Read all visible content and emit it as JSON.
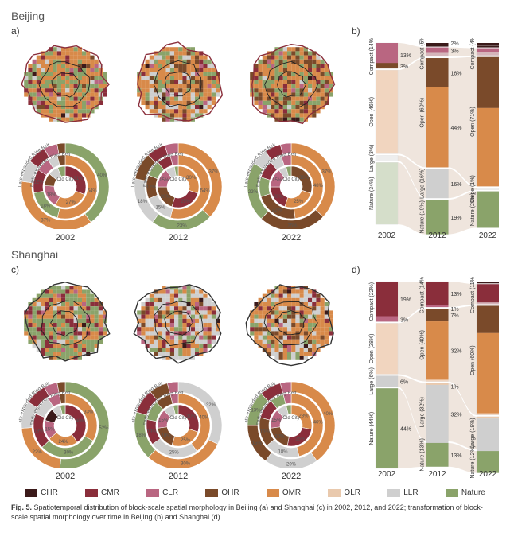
{
  "colors": {
    "CHR": "#3b1a1a",
    "CMR": "#8a2e3b",
    "CLR": "#b96681",
    "OHR": "#7a4a2a",
    "OMR": "#d88a4a",
    "OLR": "#e9c9ad",
    "LLR": "#cfcfcf",
    "Nature": "#8aa36a",
    "flow_light": "#e9dcd2",
    "outline": "#222222",
    "ring_border": "#b8b8b8",
    "figure_bg": "#ffffff"
  },
  "legend": [
    {
      "key": "CHR",
      "label": "CHR"
    },
    {
      "key": "CMR",
      "label": "CMR"
    },
    {
      "key": "CLR",
      "label": "CLR"
    },
    {
      "key": "OHR",
      "label": "OHR"
    },
    {
      "key": "OMR",
      "label": "OMR"
    },
    {
      "key": "OLR",
      "label": "OLR"
    },
    {
      "key": "LLR",
      "label": "LLR"
    },
    {
      "key": "Nature",
      "label": "Nature"
    }
  ],
  "years": [
    "2002",
    "2012",
    "2022"
  ],
  "ring_labels": {
    "outer": "Late-expanded Ring Belt",
    "mid": "Early-expanded Ring Belt",
    "inner": "Old City"
  },
  "cities": {
    "beijing": {
      "title": "Beijing",
      "panel_a": "a)",
      "panel_b": "b)",
      "map_mix_by_year": {
        "2002": {
          "Nature": 0.34,
          "OMR": 0.46,
          "CMR": 0.08,
          "CLR": 0.05,
          "LLR": 0.04,
          "OHR": 0.02,
          "CHR": 0.01
        },
        "2012": {
          "Nature": 0.19,
          "OMR": 0.44,
          "LLR": 0.16,
          "OHR": 0.1,
          "CMR": 0.05,
          "CLR": 0.04,
          "CHR": 0.02
        },
        "2022": {
          "Nature": 0.2,
          "OMR": 0.43,
          "OHR": 0.2,
          "LLR": 0.05,
          "CMR": 0.05,
          "CLR": 0.04,
          "CHR": 0.03
        }
      },
      "rings": {
        "2002": {
          "outer": [
            {
              "k": "Nature",
              "p": 0.4
            },
            {
              "k": "OMR",
              "p": 0.37
            },
            {
              "k": "LLR",
              "p": 0.08
            },
            {
              "k": "CMR",
              "p": 0.07
            },
            {
              "k": "CLR",
              "p": 0.05
            },
            {
              "k": "OHR",
              "p": 0.03
            }
          ],
          "mid": [
            {
              "k": "OMR",
              "p": 0.54
            },
            {
              "k": "Nature",
              "p": 0.18
            },
            {
              "k": "CMR",
              "p": 0.12
            },
            {
              "k": "CLR",
              "p": 0.07
            },
            {
              "k": "LLR",
              "p": 0.05
            },
            {
              "k": "OHR",
              "p": 0.04
            }
          ],
          "inner": [
            {
              "k": "CMR",
              "p": 0.31
            },
            {
              "k": "OMR",
              "p": 0.27
            },
            {
              "k": "CLR",
              "p": 0.18
            },
            {
              "k": "OHR",
              "p": 0.1
            },
            {
              "k": "LLR",
              "p": 0.08
            },
            {
              "k": "Nature",
              "p": 0.06
            }
          ]
        },
        "2012": {
          "outer": [
            {
              "k": "OMR",
              "p": 0.37
            },
            {
              "k": "Nature",
              "p": 0.23
            },
            {
              "k": "LLR",
              "p": 0.18
            },
            {
              "k": "OHR",
              "p": 0.1
            },
            {
              "k": "CMR",
              "p": 0.07
            },
            {
              "k": "CLR",
              "p": 0.05
            }
          ],
          "mid": [
            {
              "k": "OMR",
              "p": 0.54
            },
            {
              "k": "LLR",
              "p": 0.15
            },
            {
              "k": "OHR",
              "p": 0.12
            },
            {
              "k": "Nature",
              "p": 0.08
            },
            {
              "k": "CMR",
              "p": 0.07
            },
            {
              "k": "CLR",
              "p": 0.04
            }
          ],
          "inner": [
            {
              "k": "OMR",
              "p": 0.3
            },
            {
              "k": "CMR",
              "p": 0.25
            },
            {
              "k": "OHR",
              "p": 0.2
            },
            {
              "k": "CLR",
              "p": 0.15
            },
            {
              "k": "LLR",
              "p": 0.07
            },
            {
              "k": "Nature",
              "p": 0.03
            }
          ]
        },
        "2022": {
          "outer": [
            {
              "k": "OMR",
              "p": 0.37
            },
            {
              "k": "OHR",
              "p": 0.25
            },
            {
              "k": "Nature",
              "p": 0.22
            },
            {
              "k": "LLR",
              "p": 0.06
            },
            {
              "k": "CMR",
              "p": 0.06
            },
            {
              "k": "CLR",
              "p": 0.04
            }
          ],
          "mid": [
            {
              "k": "OMR",
              "p": 0.48
            },
            {
              "k": "OHR",
              "p": 0.22
            },
            {
              "k": "Nature",
              "p": 0.1
            },
            {
              "k": "CMR",
              "p": 0.09
            },
            {
              "k": "LLR",
              "p": 0.06
            },
            {
              "k": "CLR",
              "p": 0.05
            }
          ],
          "inner": [
            {
              "k": "OHR",
              "p": 0.3
            },
            {
              "k": "OMR",
              "p": 0.25
            },
            {
              "k": "CMR",
              "p": 0.2
            },
            {
              "k": "CLR",
              "p": 0.15
            },
            {
              "k": "LLR",
              "p": 0.06
            },
            {
              "k": "Nature",
              "p": 0.04
            }
          ]
        }
      },
      "sankey": {
        "cats": [
          "Compact",
          "Open",
          "Large",
          "Nature"
        ],
        "cat_color": {
          "Compact": "CMR",
          "Open": "OMR",
          "Large": "LLR",
          "Nature": "Nature"
        },
        "stacks": {
          "2002": {
            "Compact": 14,
            "Open": 46,
            "Large": 3,
            "Nature": 34
          },
          "2012": {
            "Compact": 5,
            "Open": 60,
            "Large": 16,
            "Nature": 19
          },
          "2022": {
            "Compact": 4,
            "Open": 71,
            "Large": 1,
            "Nature": 20
          }
        },
        "highlights": {
          "2002": [
            {
              "cat": "Compact",
              "v": 13,
              "c": "CLR"
            },
            {
              "cat": "Compact",
              "v": 3,
              "c": "OHR",
              "below": true
            }
          ],
          "2012": [
            {
              "cat": "Compact",
              "v": 3,
              "c": "CLR"
            },
            {
              "cat": "Open",
              "v": 16,
              "c": "OHR"
            },
            {
              "cat": "Open",
              "v": 44,
              "c": "OMR"
            },
            {
              "cat": "Large",
              "v": 16,
              "c": "LLR"
            },
            {
              "cat": "Nature",
              "v": 19,
              "c": "Nature"
            }
          ],
          "2022": [
            {
              "cat": "Compact",
              "v": 2,
              "c": "CLR"
            },
            {
              "cat": "Open",
              "v": 28,
              "c": "OHR"
            },
            {
              "cat": "Open",
              "v": 43,
              "c": "OMR"
            },
            {
              "cat": "Nature",
              "v": 20,
              "c": "Nature"
            }
          ]
        },
        "extra_top": {
          "2012": [
            2
          ],
          "2022": [
            1,
            1
          ]
        }
      }
    },
    "shanghai": {
      "title": "Shanghai",
      "panel_a": "c)",
      "panel_b": "d)",
      "map_mix_by_year": {
        "2002": {
          "Nature": 0.44,
          "OMR": 0.28,
          "CMR": 0.15,
          "CLR": 0.05,
          "LLR": 0.06,
          "OHR": 0.01,
          "CHR": 0.01
        },
        "2012": {
          "Nature": 0.13,
          "OMR": 0.32,
          "LLR": 0.32,
          "CMR": 0.09,
          "OHR": 0.07,
          "CLR": 0.05,
          "CHR": 0.02
        },
        "2022": {
          "Nature": 0.12,
          "OMR": 0.44,
          "LLR": 0.18,
          "OHR": 0.12,
          "CMR": 0.08,
          "CLR": 0.04,
          "CHR": 0.02
        }
      },
      "rings": {
        "2002": {
          "outer": [
            {
              "k": "Nature",
              "p": 0.52
            },
            {
              "k": "OMR",
              "p": 0.22
            },
            {
              "k": "LLR",
              "p": 0.1
            },
            {
              "k": "CMR",
              "p": 0.08
            },
            {
              "k": "CLR",
              "p": 0.05
            },
            {
              "k": "OHR",
              "p": 0.03
            }
          ],
          "mid": [
            {
              "k": "OMR",
              "p": 0.33
            },
            {
              "k": "Nature",
              "p": 0.3
            },
            {
              "k": "CMR",
              "p": 0.18
            },
            {
              "k": "LLR",
              "p": 0.1
            },
            {
              "k": "CLR",
              "p": 0.06
            },
            {
              "k": "OHR",
              "p": 0.03
            }
          ],
          "inner": [
            {
              "k": "CMR",
              "p": 0.4
            },
            {
              "k": "OMR",
              "p": 0.24
            },
            {
              "k": "CLR",
              "p": 0.15
            },
            {
              "k": "CHR",
              "p": 0.1
            },
            {
              "k": "LLR",
              "p": 0.07
            },
            {
              "k": "Nature",
              "p": 0.04
            }
          ]
        },
        "2012": {
          "outer": [
            {
              "k": "LLR",
              "p": 0.32
            },
            {
              "k": "OMR",
              "p": 0.3
            },
            {
              "k": "Nature",
              "p": 0.18
            },
            {
              "k": "CMR",
              "p": 0.09
            },
            {
              "k": "OHR",
              "p": 0.07
            },
            {
              "k": "CLR",
              "p": 0.04
            }
          ],
          "mid": [
            {
              "k": "OMR",
              "p": 0.4
            },
            {
              "k": "LLR",
              "p": 0.25
            },
            {
              "k": "CMR",
              "p": 0.13
            },
            {
              "k": "Nature",
              "p": 0.1
            },
            {
              "k": "OHR",
              "p": 0.08
            },
            {
              "k": "CLR",
              "p": 0.04
            }
          ],
          "inner": [
            {
              "k": "CMR",
              "p": 0.3
            },
            {
              "k": "OMR",
              "p": 0.25
            },
            {
              "k": "OHR",
              "p": 0.18
            },
            {
              "k": "CLR",
              "p": 0.15
            },
            {
              "k": "LLR",
              "p": 0.08
            },
            {
              "k": "Nature",
              "p": 0.04
            }
          ]
        },
        "2022": {
          "outer": [
            {
              "k": "OMR",
              "p": 0.4
            },
            {
              "k": "LLR",
              "p": 0.2
            },
            {
              "k": "OHR",
              "p": 0.15
            },
            {
              "k": "Nature",
              "p": 0.13
            },
            {
              "k": "CMR",
              "p": 0.08
            },
            {
              "k": "CLR",
              "p": 0.04
            }
          ],
          "mid": [
            {
              "k": "OMR",
              "p": 0.46
            },
            {
              "k": "LLR",
              "p": 0.18
            },
            {
              "k": "OHR",
              "p": 0.15
            },
            {
              "k": "CMR",
              "p": 0.1
            },
            {
              "k": "Nature",
              "p": 0.07
            },
            {
              "k": "CLR",
              "p": 0.04
            }
          ],
          "inner": [
            {
              "k": "OMR",
              "p": 0.28
            },
            {
              "k": "CMR",
              "p": 0.25
            },
            {
              "k": "OHR",
              "p": 0.2
            },
            {
              "k": "CLR",
              "p": 0.15
            },
            {
              "k": "LLR",
              "p": 0.08
            },
            {
              "k": "Nature",
              "p": 0.04
            }
          ]
        }
      },
      "sankey": {
        "cats": [
          "Compact",
          "Open",
          "Large",
          "Nature"
        ],
        "cat_color": {
          "Compact": "CMR",
          "Open": "OMR",
          "Large": "LLR",
          "Nature": "Nature"
        },
        "stacks": {
          "2002": {
            "Compact": 22,
            "Open": 28,
            "Large": 6,
            "Nature": 44
          },
          "2012": {
            "Compact": 14,
            "Open": 40,
            "Large": 32,
            "Nature": 13
          },
          "2022": {
            "Compact": 11,
            "Open": 60,
            "Large": 18,
            "Nature": 12
          }
        },
        "highlights": {
          "2002": [
            {
              "cat": "Compact",
              "v": 19,
              "c": "CMR"
            },
            {
              "cat": "Compact",
              "v": 3,
              "c": "CLR",
              "below": true
            },
            {
              "cat": "Large",
              "v": 6,
              "c": "LLR"
            },
            {
              "cat": "Nature",
              "v": 44,
              "c": "Nature"
            }
          ],
          "2012": [
            {
              "cat": "Compact",
              "v": 13,
              "c": "CMR"
            },
            {
              "cat": "Compact",
              "v": 1,
              "c": "CLR",
              "tiny": true
            },
            {
              "cat": "Open",
              "v": 7,
              "c": "OHR"
            },
            {
              "cat": "Open",
              "v": 32,
              "c": "OMR"
            },
            {
              "cat": "Large",
              "v": 1,
              "c": "OLR",
              "tiny": true
            },
            {
              "cat": "Large",
              "v": 32,
              "c": "LLR"
            },
            {
              "cat": "Nature",
              "v": 13,
              "c": "Nature"
            }
          ],
          "2022": [
            {
              "cat": "Compact",
              "v": 10,
              "c": "CMR"
            },
            {
              "cat": "Open",
              "v": 15,
              "c": "OHR"
            },
            {
              "cat": "Open",
              "v": 44,
              "c": "OMR"
            },
            {
              "cat": "Large",
              "v": 1,
              "c": "OLR",
              "tiny": true
            },
            {
              "cat": "Large",
              "v": 18,
              "c": "LLR"
            },
            {
              "cat": "Nature",
              "v": 12,
              "c": "Nature"
            }
          ]
        },
        "extra_top": {
          "2022": [
            1
          ]
        }
      }
    }
  },
  "caption": {
    "prefix": "Fig. 5.",
    "text": " Spatiotemporal distribution of block-scale spatial morphology in Beijing (a) and Shanghai (c) in 2002, 2012, and 2022; transformation of block-scale spatial morphology over time in Beijing (b) and Shanghai (d)."
  }
}
